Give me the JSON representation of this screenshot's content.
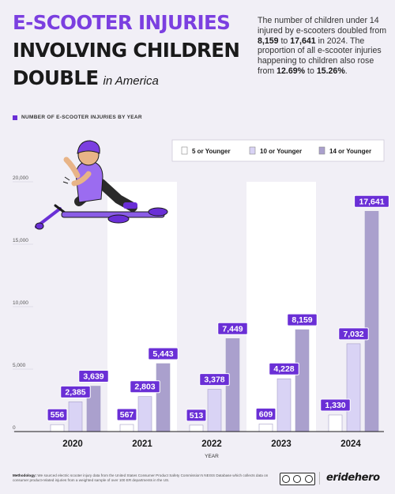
{
  "header": {
    "title_line1": "E-SCOOTER INJURIES",
    "title_line2": "INVOLVING CHILDREN",
    "title_line3": "DOUBLE",
    "title_suffix": "in America"
  },
  "intro": {
    "part1": "The number of children under 14 injured by e-scooters doubled from ",
    "bold1": "8,159",
    "part2": " to ",
    "bold2": "17,641",
    "part3": " in 2024. The proportion of all e-scooter injuries happening to children also rose from ",
    "bold3": "12.69%",
    "part4": " to ",
    "bold4": "15.26%",
    "part5": "."
  },
  "series_caption": "NUMBER OF E-SCOOTER INJURIES BY YEAR",
  "chart_data": {
    "type": "bar",
    "categories": [
      "2020",
      "2021",
      "2022",
      "2023",
      "2024"
    ],
    "xlabel": "YEAR",
    "ylabel": "",
    "ylim": [
      0,
      20000
    ],
    "yticks": [
      0,
      5000,
      10000,
      15000,
      20000
    ],
    "ytick_labels": [
      "0",
      "5,000",
      "10,000",
      "15,000",
      "20,000"
    ],
    "grid": false,
    "legend_position": "top-right",
    "series": [
      {
        "name": "5 or Younger",
        "color": "#ffffff",
        "values": [
          556,
          567,
          513,
          609,
          1330
        ],
        "labels": [
          "556",
          "567",
          "513",
          "609",
          "1,330"
        ]
      },
      {
        "name": "10 or Younger",
        "color": "#d9d3f5",
        "values": [
          2385,
          2803,
          3378,
          4228,
          7032
        ],
        "labels": [
          "2,385",
          "2,803",
          "3,378",
          "4,228",
          "7,032"
        ]
      },
      {
        "name": "14 or Younger",
        "color": "#aaa0cd",
        "values": [
          3639,
          5443,
          7449,
          8159,
          17641
        ],
        "labels": [
          "3,639",
          "5,443",
          "7,449",
          "8,159",
          "17,641"
        ]
      }
    ]
  },
  "colors": {
    "accent": "#7b3fe0",
    "label_bg": "#6a2fd6",
    "panel": "#ffffff",
    "background": "#f1eff6"
  },
  "footer": {
    "methodology_label": "Methodology:",
    "methodology_text": " We sourced electric scooter injury data from the United States Consumer Product Safety Commission's NEISS Database which collects data on consumer product-related injuries from a weighted sample of over 100 ER departments in the US.",
    "brand": "eridehero",
    "license_icon": "creative-commons-icon"
  }
}
